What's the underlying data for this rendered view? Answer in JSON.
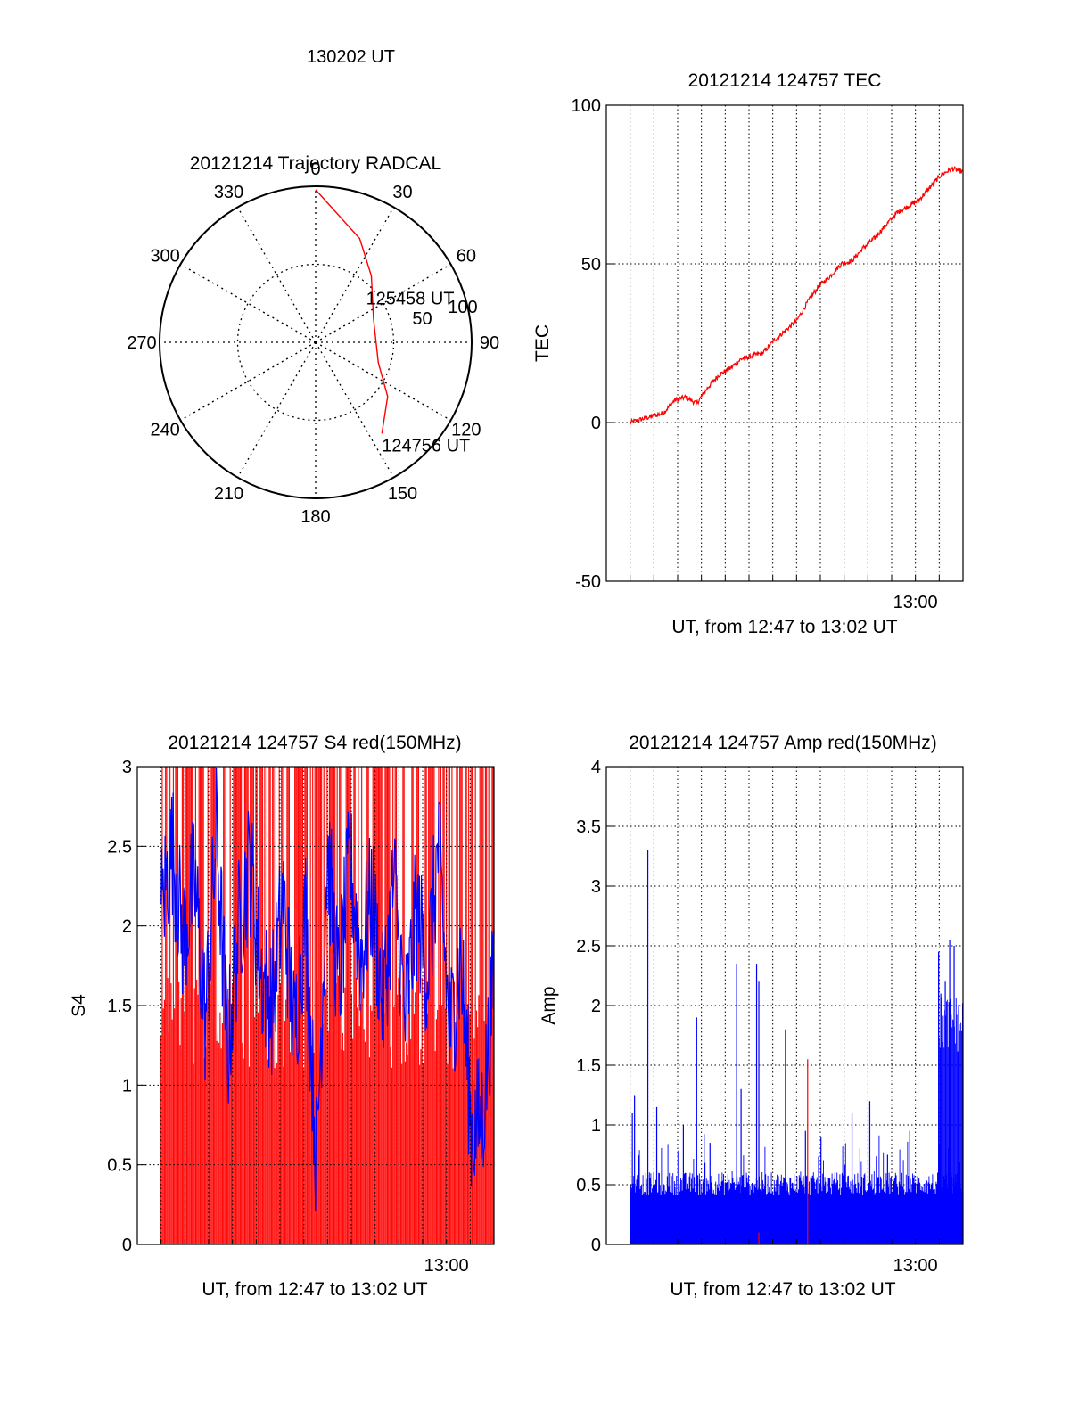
{
  "chart_data": [
    {
      "type": "polar",
      "title": "20121214 Trajectory RADCAL",
      "angle_labels": [
        "0",
        "30",
        "60",
        "90",
        "120",
        "150",
        "180",
        "210",
        "240",
        "270",
        "300",
        "330"
      ],
      "radius_labels": [
        "50",
        "100"
      ],
      "trajectory": {
        "color": "#ff0000",
        "points": [
          {
            "azimuth": 144,
            "elevation": 25
          },
          {
            "azimuth": 127,
            "elevation": 38
          },
          {
            "azimuth": 108,
            "elevation": 52
          },
          {
            "azimuth": 68,
            "elevation": 54
          },
          {
            "azimuth": 40,
            "elevation": 40
          },
          {
            "azimuth": 23,
            "elevation": 25
          },
          {
            "azimuth": 0,
            "elevation": 2
          }
        ],
        "labels": [
          {
            "text": "124756 UT",
            "azimuth": 144,
            "elevation": 25
          },
          {
            "text": "125458 UT",
            "azimuth": 72,
            "elevation": 54
          },
          {
            "text": "130202 UT",
            "azimuth": 0,
            "elevation": 2
          }
        ]
      }
    },
    {
      "type": "line",
      "title": "20121214 124757 TEC",
      "xlabel": "UT, from 12:47 to 13:02 UT",
      "ylabel": "TEC",
      "xlim": [
        0,
        15
      ],
      "ylim": [
        -50,
        100
      ],
      "yticks": [
        "100",
        "50",
        "0",
        "-50"
      ],
      "xtick_label": "13:00",
      "xtick_value": 13,
      "grid": true,
      "series": [
        {
          "color": "#ff0000",
          "x": [
            0.0,
            0.5,
            1.0,
            1.5,
            2.0,
            2.5,
            3.0,
            3.5,
            4.0,
            4.5,
            5.0,
            5.5,
            6.0,
            6.5,
            7.0,
            7.5,
            8.0,
            8.5,
            9.0,
            9.5,
            10.0,
            10.5,
            11.0,
            11.5,
            12.0,
            12.5,
            13.0,
            13.5,
            14.0,
            14.5,
            15.0
          ],
          "y": [
            0,
            1,
            2,
            3,
            7,
            8,
            6,
            11,
            15,
            17,
            20,
            21,
            22,
            26,
            29,
            32,
            38,
            43,
            46,
            50,
            51,
            55,
            58,
            62,
            66,
            68,
            70,
            74,
            78,
            80,
            79
          ]
        }
      ]
    },
    {
      "type": "bar",
      "title": "20121214 124757 S4 red(150MHz)",
      "xlabel": "UT, from 12:47 to 13:02 UT",
      "ylabel": "S4",
      "xlim": [
        0,
        15
      ],
      "ylim": [
        0,
        3
      ],
      "yticks": [
        "3",
        "2.5",
        "2",
        "1.5",
        "1",
        "0.5",
        "0"
      ],
      "xtick_label": "13:00",
      "xtick_value": 13,
      "grid": true,
      "series": [
        {
          "name": "",
          "color": "#ff0000",
          "style": "dense-vertical-lines",
          "x": [
            0.0,
            0.5,
            1.0,
            1.5,
            2.0,
            2.5,
            3.0,
            3.5,
            4.0,
            4.5,
            5.0,
            5.5,
            6.0,
            6.5,
            7.0,
            7.5,
            8.0,
            8.5,
            9.0,
            9.5,
            10.0,
            10.5,
            11.0,
            11.5,
            12.0,
            12.5,
            13.0,
            13.5,
            14.0,
            14.5,
            15.0
          ],
          "y": [
            3.0,
            3.0,
            1.6,
            3.0,
            1.6,
            3.0,
            1.6,
            3.0,
            1.6,
            3.0,
            1.6,
            3.0,
            1.5,
            3.0,
            1.5,
            3.0,
            1.5,
            3.0,
            1.5,
            3.0,
            1.5,
            3.0,
            1.5,
            3.0,
            1.5,
            3.0,
            1.4,
            3.0,
            0.7,
            3.0,
            1.5
          ]
        },
        {
          "name": "",
          "color": "#0000ff",
          "style": "line",
          "x": [
            0.0,
            0.5,
            1.0,
            1.5,
            2.0,
            2.5,
            3.0,
            3.5,
            4.0,
            4.5,
            5.0,
            5.5,
            6.0,
            6.5,
            7.0,
            7.5,
            8.0,
            8.5,
            9.0,
            9.5,
            10.0,
            10.5,
            11.0,
            11.5,
            12.0,
            12.5,
            13.0,
            13.5,
            14.0,
            14.5,
            15.0
          ],
          "y": [
            2.1,
            2.5,
            1.9,
            2.3,
            1.4,
            2.6,
            1.2,
            2.0,
            2.4,
            1.7,
            1.5,
            2.2,
            1.3,
            2.1,
            0.5,
            2.5,
            1.6,
            2.4,
            1.8,
            2.2,
            1.5,
            2.3,
            1.4,
            2.1,
            1.7,
            2.5,
            1.3,
            1.8,
            0.7,
            0.8,
            1.7
          ]
        }
      ]
    },
    {
      "type": "bar",
      "title": "20121214 124757 Amp red(150MHz)",
      "xlabel": "UT, from 12:47 to 13:02 UT",
      "ylabel": "Amp",
      "xlim": [
        0,
        15
      ],
      "ylim": [
        0,
        4
      ],
      "yticks": [
        "4",
        "3.5",
        "3",
        "2.5",
        "2",
        "1.5",
        "1",
        "0.5",
        "0"
      ],
      "xtick_label": "13:00",
      "xtick_value": 13,
      "grid": true,
      "series": [
        {
          "name": "",
          "color": "#0000ff",
          "style": "dense-vertical-lines",
          "baseline": 0.55,
          "spikes": [
            {
              "x": 0.1,
              "y": 1.1
            },
            {
              "x": 0.2,
              "y": 1.25
            },
            {
              "x": 0.8,
              "y": 3.3
            },
            {
              "x": 1.2,
              "y": 1.15
            },
            {
              "x": 2.4,
              "y": 1.0
            },
            {
              "x": 3.0,
              "y": 1.9
            },
            {
              "x": 3.6,
              "y": 0.85
            },
            {
              "x": 4.8,
              "y": 2.35
            },
            {
              "x": 5.0,
              "y": 1.3
            },
            {
              "x": 5.7,
              "y": 2.35
            },
            {
              "x": 5.8,
              "y": 2.2
            },
            {
              "x": 7.0,
              "y": 1.8
            },
            {
              "x": 7.9,
              "y": 0.95
            },
            {
              "x": 8.6,
              "y": 0.9
            },
            {
              "x": 10.0,
              "y": 1.1
            },
            {
              "x": 10.8,
              "y": 1.2
            },
            {
              "x": 11.6,
              "y": 0.75
            },
            {
              "x": 12.6,
              "y": 0.95
            },
            {
              "x": 13.9,
              "y": 2.45
            },
            {
              "x": 14.0,
              "y": 2.1
            },
            {
              "x": 14.2,
              "y": 2.2
            },
            {
              "x": 14.4,
              "y": 2.55
            },
            {
              "x": 14.6,
              "y": 2.5
            }
          ]
        },
        {
          "name": "",
          "color": "#ff0000",
          "style": "spikes",
          "spikes": [
            {
              "x": 8.0,
              "y": 1.55
            },
            {
              "x": 5.8,
              "y": 0.1
            }
          ]
        }
      ]
    }
  ]
}
